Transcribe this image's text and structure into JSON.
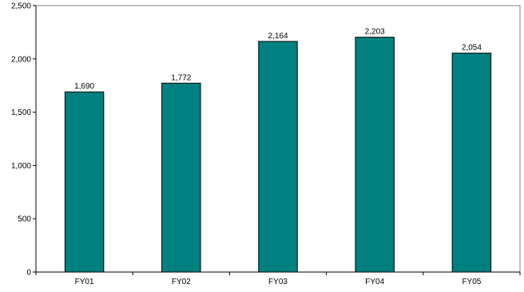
{
  "chart_data": {
    "type": "bar",
    "categories": [
      "FY01",
      "FY02",
      "FY03",
      "FY04",
      "FY05"
    ],
    "values": [
      1690,
      1772,
      2164,
      2203,
      2054
    ],
    "data_labels": [
      "1,690",
      "1,772",
      "2,164",
      "2,203",
      "2,054"
    ],
    "title": "",
    "xlabel": "",
    "ylabel": "",
    "ylim": [
      0,
      2500
    ],
    "y_ticks": [
      0,
      500,
      1000,
      1500,
      2000,
      2500
    ],
    "y_tick_labels": [
      "0",
      "500",
      "1,000",
      "1,500",
      "2,000",
      "2,500"
    ],
    "grid": false,
    "legend": "none",
    "bar_color": "#008080",
    "bar_edge_color": "#000000"
  }
}
